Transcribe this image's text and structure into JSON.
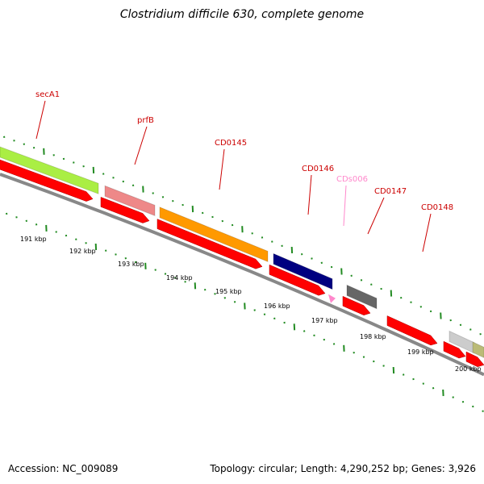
{
  "title": "Clostridium difficile 630, complete genome",
  "footer": {
    "accession": "Accession: NC_009089",
    "topology": "Topology: circular; Length: 4,290,252 bp; Genes: 3,926"
  },
  "colors": {
    "tick": "#228B22",
    "backbone": "#888888",
    "cds_arrow": "#ff0000",
    "label": "#cc0000",
    "ncrna_label": "#ff88cc"
  },
  "gene_labels": [
    {
      "name": "secA1",
      "color": "#cc0000"
    },
    {
      "name": "prfB",
      "color": "#cc0000"
    },
    {
      "name": "CD0145",
      "color": "#cc0000"
    },
    {
      "name": "CD0146",
      "color": "#cc0000"
    },
    {
      "name": "CDs006",
      "color": "#ff88cc"
    },
    {
      "name": "CD0147",
      "color": "#cc0000"
    },
    {
      "name": "CD0148",
      "color": "#cc0000"
    }
  ],
  "feature_bars": [
    {
      "label": "secA1",
      "color": "#aaee44"
    },
    {
      "label": "prfB",
      "color": "#ee8888"
    },
    {
      "label": "CD0145",
      "color": "#ff9900"
    },
    {
      "label": "CD0146",
      "color": "#000080"
    },
    {
      "label": "CD0147",
      "color": "#666666"
    },
    {
      "label": "",
      "color": "#cccccc"
    },
    {
      "label": "",
      "color": "#bbbb77"
    }
  ],
  "scale_labels": [
    "191 kbp",
    "192 kbp",
    "193 kbp",
    "194 kbp",
    "195 kbp",
    "196 kbp",
    "197 kbp",
    "198 kbp",
    "199 kbp",
    "200 kbp"
  ]
}
